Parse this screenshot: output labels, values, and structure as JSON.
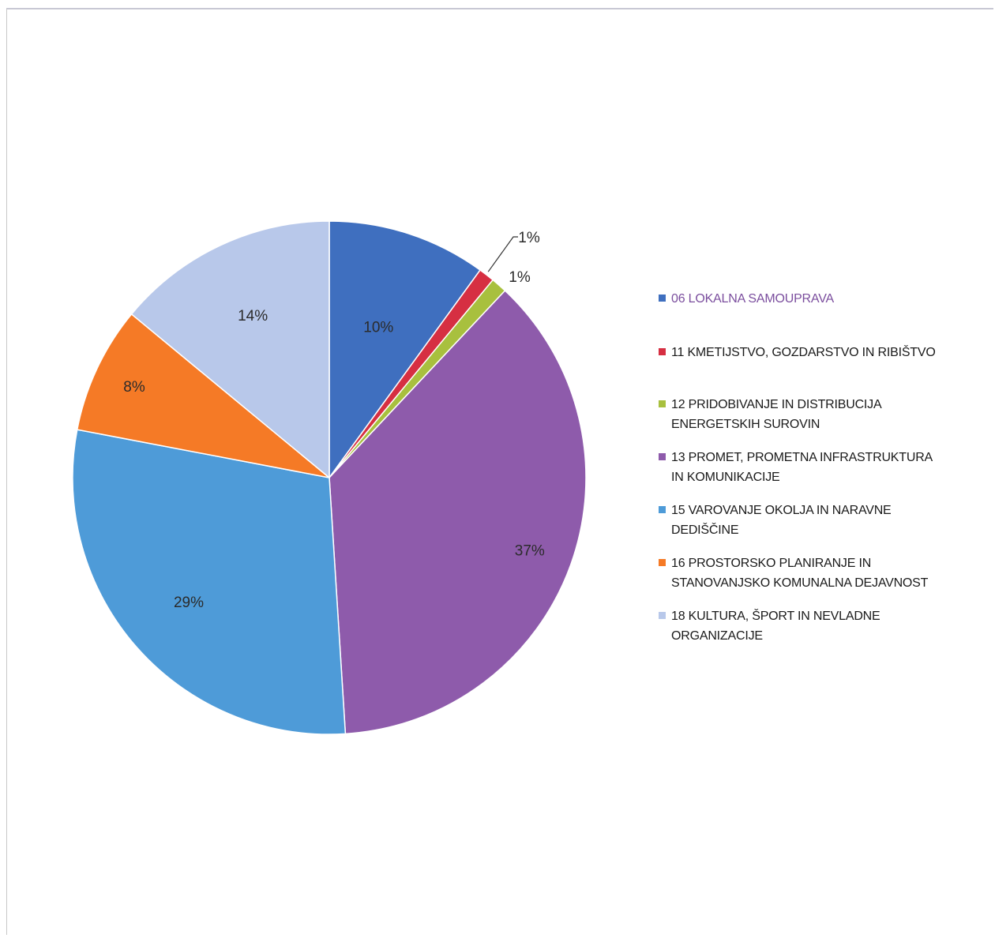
{
  "chart_data": {
    "type": "pie",
    "slices": [
      {
        "label": "06 LOKALNA SAMOUPRAVA",
        "value": 10,
        "value_label": "10%",
        "color": "#3f6fbf"
      },
      {
        "label": "11 KMETIJSTVO, GOZDARSTVO IN RIBIŠTVO",
        "value": 1,
        "value_label": "1%",
        "color": "#d62f42"
      },
      {
        "label": "12 PRIDOBIVANJE IN DISTRIBUCIJA\nENERGETSKIH SUROVIN",
        "value": 1,
        "value_label": "1%",
        "color": "#a8c03e"
      },
      {
        "label": "13 PROMET, PROMETNA INFRASTRUKTURA\nIN KOMUNIKACIJE",
        "value": 37,
        "value_label": "37%",
        "color": "#8e5bab"
      },
      {
        "label": "15 VAROVANJE OKOLJA IN NARAVNE\nDEDIŠČINE",
        "value": 29,
        "value_label": "29%",
        "color": "#4e9bd8"
      },
      {
        "label": "16 PROSTORSKO PLANIRANJE IN\nSTANOVANJSKO KOMUNALNA DEJAVNOST",
        "value": 8,
        "value_label": "8%",
        "color": "#f57a26"
      },
      {
        "label": "18 KULTURA, ŠPORT IN NEVLADNE\nORGANIZACIJE",
        "value": 14,
        "value_label": "14%",
        "color": "#b8c8ea"
      }
    ],
    "legend_position": "right",
    "title": ""
  }
}
